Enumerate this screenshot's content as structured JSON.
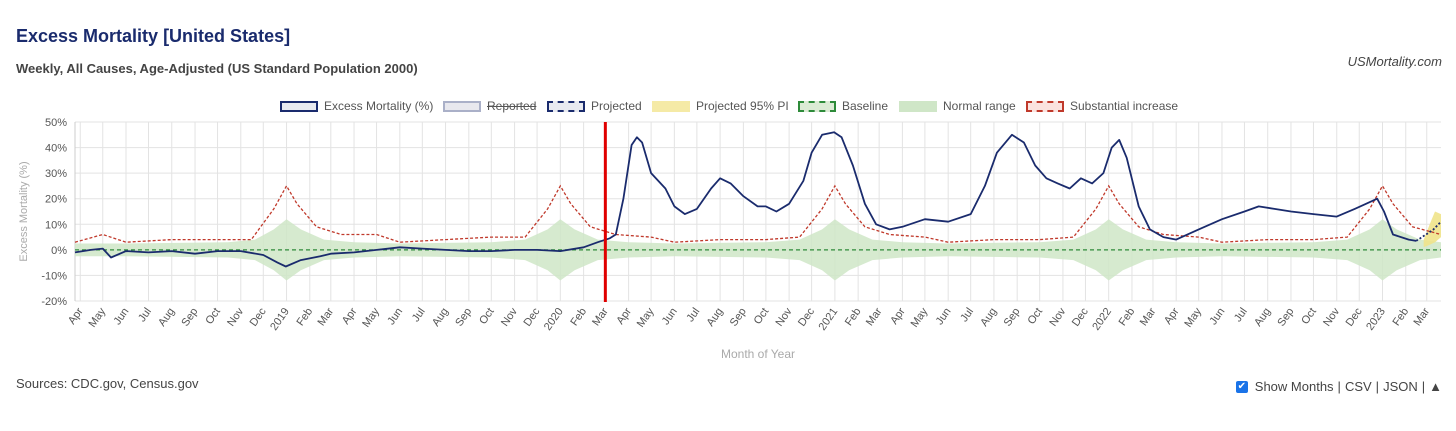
{
  "header": {
    "title": "Excess Mortality [United States]",
    "subtitle": "Weekly, All Causes, Age-Adjusted (US Standard Population 2000)",
    "brand": "USMortality.com"
  },
  "legend": [
    {
      "label": "Excess Mortality (%)",
      "struck": false,
      "fill": "#e8eaf0",
      "border": "#1a2b6d",
      "dashed": false
    },
    {
      "label": "Reported",
      "struck": true,
      "fill": "#e8e8ee",
      "border": "#aab0c8",
      "dashed": false
    },
    {
      "label": "Projected",
      "struck": false,
      "fill": "#e8eaf0",
      "border": "#1a2b6d",
      "dashed": true
    },
    {
      "label": "Projected 95% PI",
      "struck": false,
      "fill": "#f5eaa6",
      "border": "#f5eaa6",
      "dashed": false
    },
    {
      "label": "Baseline",
      "struck": false,
      "fill": "#dcebd5",
      "border": "#2e8b3a",
      "dashed": true
    },
    {
      "label": "Normal range",
      "struck": false,
      "fill": "#cfe6c7",
      "border": "#cfe6c7",
      "dashed": false
    },
    {
      "label": "Substantial increase",
      "struck": false,
      "fill": "#fbe3df",
      "border": "#c0392b",
      "dashed": true
    }
  ],
  "chart_data": {
    "type": "line",
    "ylabel": "Excess Mortality (%)",
    "xlabel": "Month of Year",
    "ylim": [
      -20,
      50
    ],
    "yticks": [
      50,
      40,
      30,
      20,
      10,
      0,
      -10,
      -20
    ],
    "xlim": [
      "2018-03-25",
      "2023-03-20"
    ],
    "grid": true,
    "marker_date": "2020-03-01",
    "colors": {
      "excess": "#1a2b6d",
      "projected": "#1a2b6d",
      "baseline": "#2e8b3a",
      "normal": "#cfe6c7",
      "substantial": "#c0392b",
      "marker": "#e00000",
      "pi": "#f0e38a"
    },
    "x_ticks": [
      [
        "2018-04-01",
        "Apr"
      ],
      [
        "2018-05-01",
        "May"
      ],
      [
        "2018-06-01",
        "Jun"
      ],
      [
        "2018-07-01",
        "Jul"
      ],
      [
        "2018-08-01",
        "Aug"
      ],
      [
        "2018-09-01",
        "Sep"
      ],
      [
        "2018-10-01",
        "Oct"
      ],
      [
        "2018-11-01",
        "Nov"
      ],
      [
        "2018-12-01",
        "Dec"
      ],
      [
        "2019-01-01",
        "2019"
      ],
      [
        "2019-02-01",
        "Feb"
      ],
      [
        "2019-03-01",
        "Mar"
      ],
      [
        "2019-04-01",
        "Apr"
      ],
      [
        "2019-05-01",
        "May"
      ],
      [
        "2019-06-01",
        "Jun"
      ],
      [
        "2019-07-01",
        "Jul"
      ],
      [
        "2019-08-01",
        "Aug"
      ],
      [
        "2019-09-01",
        "Sep"
      ],
      [
        "2019-10-01",
        "Oct"
      ],
      [
        "2019-11-01",
        "Nov"
      ],
      [
        "2019-12-01",
        "Dec"
      ],
      [
        "2020-01-01",
        "2020"
      ],
      [
        "2020-02-01",
        "Feb"
      ],
      [
        "2020-03-01",
        "Mar"
      ],
      [
        "2020-04-01",
        "Apr"
      ],
      [
        "2020-05-01",
        "May"
      ],
      [
        "2020-06-01",
        "Jun"
      ],
      [
        "2020-07-01",
        "Jul"
      ],
      [
        "2020-08-01",
        "Aug"
      ],
      [
        "2020-09-01",
        "Sep"
      ],
      [
        "2020-10-01",
        "Oct"
      ],
      [
        "2020-11-01",
        "Nov"
      ],
      [
        "2020-12-01",
        "Dec"
      ],
      [
        "2021-01-01",
        "2021"
      ],
      [
        "2021-02-01",
        "Feb"
      ],
      [
        "2021-03-01",
        "Mar"
      ],
      [
        "2021-04-01",
        "Apr"
      ],
      [
        "2021-05-01",
        "May"
      ],
      [
        "2021-06-01",
        "Jun"
      ],
      [
        "2021-07-01",
        "Jul"
      ],
      [
        "2021-08-01",
        "Aug"
      ],
      [
        "2021-09-01",
        "Sep"
      ],
      [
        "2021-10-01",
        "Oct"
      ],
      [
        "2021-11-01",
        "Nov"
      ],
      [
        "2021-12-01",
        "Dec"
      ],
      [
        "2022-01-01",
        "2022"
      ],
      [
        "2022-02-01",
        "Feb"
      ],
      [
        "2022-03-01",
        "Mar"
      ],
      [
        "2022-04-01",
        "Apr"
      ],
      [
        "2022-05-01",
        "May"
      ],
      [
        "2022-06-01",
        "Jun"
      ],
      [
        "2022-07-01",
        "Jul"
      ],
      [
        "2022-08-01",
        "Aug"
      ],
      [
        "2022-09-01",
        "Sep"
      ],
      [
        "2022-10-01",
        "Oct"
      ],
      [
        "2022-11-01",
        "Nov"
      ],
      [
        "2022-12-01",
        "Dec"
      ],
      [
        "2023-01-01",
        "2023"
      ],
      [
        "2023-02-01",
        "Feb"
      ],
      [
        "2023-03-01",
        "Mar"
      ]
    ],
    "excess": [
      [
        "2018-03-25",
        -1
      ],
      [
        "2018-04-15",
        0
      ],
      [
        "2018-05-01",
        0.5
      ],
      [
        "2018-05-12",
        -3
      ],
      [
        "2018-06-01",
        -0.5
      ],
      [
        "2018-07-01",
        -1
      ],
      [
        "2018-08-01",
        -0.5
      ],
      [
        "2018-09-01",
        -1.5
      ],
      [
        "2018-10-01",
        -0.5
      ],
      [
        "2018-11-01",
        -0.5
      ],
      [
        "2018-12-01",
        -2
      ],
      [
        "2018-12-20",
        -5
      ],
      [
        "2018-12-31",
        -6.5
      ],
      [
        "2019-01-20",
        -4
      ],
      [
        "2019-02-15",
        -2.5
      ],
      [
        "2019-03-01",
        -1.5
      ],
      [
        "2019-04-01",
        -1
      ],
      [
        "2019-05-01",
        0
      ],
      [
        "2019-06-01",
        1
      ],
      [
        "2019-07-01",
        0.5
      ],
      [
        "2019-08-01",
        0
      ],
      [
        "2019-09-01",
        -0.5
      ],
      [
        "2019-10-01",
        -0.5
      ],
      [
        "2019-11-01",
        0
      ],
      [
        "2019-12-01",
        0
      ],
      [
        "2020-01-01",
        -0.5
      ],
      [
        "2020-02-01",
        1
      ],
      [
        "2020-02-20",
        3
      ],
      [
        "2020-03-07",
        4.5
      ],
      [
        "2020-03-15",
        6
      ],
      [
        "2020-03-25",
        20
      ],
      [
        "2020-04-05",
        41
      ],
      [
        "2020-04-12",
        44
      ],
      [
        "2020-04-19",
        42
      ],
      [
        "2020-05-01",
        30
      ],
      [
        "2020-05-20",
        24
      ],
      [
        "2020-06-01",
        17
      ],
      [
        "2020-06-15",
        14
      ],
      [
        "2020-07-01",
        16
      ],
      [
        "2020-07-20",
        24
      ],
      [
        "2020-08-01",
        28
      ],
      [
        "2020-08-15",
        26
      ],
      [
        "2020-09-01",
        21
      ],
      [
        "2020-09-20",
        17
      ],
      [
        "2020-10-01",
        17
      ],
      [
        "2020-10-15",
        15
      ],
      [
        "2020-11-01",
        18
      ],
      [
        "2020-11-20",
        27
      ],
      [
        "2020-12-01",
        38
      ],
      [
        "2020-12-15",
        45
      ],
      [
        "2020-12-31",
        46
      ],
      [
        "2021-01-10",
        44
      ],
      [
        "2021-01-25",
        33
      ],
      [
        "2021-02-10",
        18
      ],
      [
        "2021-02-25",
        10
      ],
      [
        "2021-03-15",
        8
      ],
      [
        "2021-04-01",
        9
      ],
      [
        "2021-05-01",
        12
      ],
      [
        "2021-06-01",
        11
      ],
      [
        "2021-07-01",
        14
      ],
      [
        "2021-07-20",
        25
      ],
      [
        "2021-08-05",
        38
      ],
      [
        "2021-08-25",
        45
      ],
      [
        "2021-09-10",
        42
      ],
      [
        "2021-09-25",
        33
      ],
      [
        "2021-10-10",
        28
      ],
      [
        "2021-10-25",
        26
      ],
      [
        "2021-11-10",
        24
      ],
      [
        "2021-11-25",
        28
      ],
      [
        "2021-12-10",
        26
      ],
      [
        "2021-12-25",
        30
      ],
      [
        "2022-01-05",
        40
      ],
      [
        "2022-01-15",
        43
      ],
      [
        "2022-01-25",
        36
      ],
      [
        "2022-02-10",
        17
      ],
      [
        "2022-02-25",
        8
      ],
      [
        "2022-03-15",
        5
      ],
      [
        "2022-04-01",
        4
      ],
      [
        "2022-05-01",
        8
      ],
      [
        "2022-06-01",
        12
      ],
      [
        "2022-07-01",
        15
      ],
      [
        "2022-07-20",
        17
      ],
      [
        "2022-08-10",
        16
      ],
      [
        "2022-09-01",
        15
      ],
      [
        "2022-10-01",
        14
      ],
      [
        "2022-11-01",
        13
      ],
      [
        "2022-11-25",
        16
      ],
      [
        "2022-12-10",
        18
      ],
      [
        "2022-12-25",
        20
      ],
      [
        "2023-01-03",
        15
      ],
      [
        "2023-01-15",
        6
      ],
      [
        "2023-02-05",
        4
      ],
      [
        "2023-02-15",
        3.5
      ]
    ],
    "projected": [
      [
        "2023-02-15",
        3.5
      ],
      [
        "2023-02-28",
        6
      ],
      [
        "2023-03-10",
        8
      ],
      [
        "2023-03-20",
        11
      ]
    ],
    "pi": [
      [
        "2023-02-25",
        1,
        4
      ],
      [
        "2023-03-05",
        2,
        10
      ],
      [
        "2023-03-12",
        3,
        15
      ],
      [
        "2023-03-20",
        5,
        14
      ]
    ],
    "normal_range": [
      [
        "2018-03-25",
        -2.5,
        2.5
      ],
      [
        "2018-06-01",
        -2.5,
        2.5
      ],
      [
        "2018-10-15",
        -3,
        3
      ],
      [
        "2018-11-20",
        -4,
        4
      ],
      [
        "2018-12-15",
        -8,
        8
      ],
      [
        "2019-01-01",
        -12,
        12
      ],
      [
        "2019-01-20",
        -8,
        8
      ],
      [
        "2019-02-20",
        -4,
        4
      ],
      [
        "2019-04-01",
        -3,
        3
      ],
      [
        "2019-06-01",
        -2.5,
        2.5
      ],
      [
        "2019-10-01",
        -3,
        3
      ],
      [
        "2019-11-15",
        -4,
        4
      ],
      [
        "2019-12-15",
        -8,
        8
      ],
      [
        "2020-01-01",
        -12,
        12
      ],
      [
        "2020-01-20",
        -8,
        8
      ],
      [
        "2020-02-20",
        -4,
        4
      ],
      [
        "2020-04-01",
        -3,
        3
      ],
      [
        "2020-06-01",
        -2.5,
        2.5
      ],
      [
        "2020-10-01",
        -3,
        3
      ],
      [
        "2020-11-15",
        -4,
        4
      ],
      [
        "2020-12-15",
        -8,
        8
      ],
      [
        "2021-01-01",
        -12,
        12
      ],
      [
        "2021-01-20",
        -8,
        8
      ],
      [
        "2021-02-20",
        -4,
        4
      ],
      [
        "2021-04-01",
        -3,
        3
      ],
      [
        "2021-06-01",
        -2.5,
        2.5
      ],
      [
        "2021-10-01",
        -3,
        3
      ],
      [
        "2021-11-15",
        -4,
        4
      ],
      [
        "2021-12-15",
        -8,
        8
      ],
      [
        "2022-01-01",
        -12,
        12
      ],
      [
        "2022-01-20",
        -8,
        8
      ],
      [
        "2022-02-20",
        -4,
        4
      ],
      [
        "2022-04-01",
        -3,
        3
      ],
      [
        "2022-06-01",
        -2.5,
        2.5
      ],
      [
        "2022-10-01",
        -3,
        3
      ],
      [
        "2022-11-15",
        -4,
        4
      ],
      [
        "2022-12-15",
        -8,
        8
      ],
      [
        "2023-01-01",
        -12,
        12
      ],
      [
        "2023-01-20",
        -8,
        8
      ],
      [
        "2023-02-20",
        -4,
        4
      ],
      [
        "2023-03-20",
        -3,
        3
      ]
    ],
    "substantial": [
      [
        "2018-03-25",
        3
      ],
      [
        "2018-05-01",
        6
      ],
      [
        "2018-06-01",
        3
      ],
      [
        "2018-08-01",
        4
      ],
      [
        "2018-10-01",
        4
      ],
      [
        "2018-11-15",
        4
      ],
      [
        "2018-12-15",
        16
      ],
      [
        "2019-01-01",
        25
      ],
      [
        "2019-01-15",
        18
      ],
      [
        "2019-02-10",
        9
      ],
      [
        "2019-03-15",
        6
      ],
      [
        "2019-05-01",
        6
      ],
      [
        "2019-06-01",
        3
      ],
      [
        "2019-08-01",
        4
      ],
      [
        "2019-10-01",
        5
      ],
      [
        "2019-11-15",
        5
      ],
      [
        "2019-12-15",
        16
      ],
      [
        "2020-01-01",
        25
      ],
      [
        "2020-01-15",
        18
      ],
      [
        "2020-02-10",
        9
      ],
      [
        "2020-03-15",
        6
      ],
      [
        "2020-05-01",
        5
      ],
      [
        "2020-06-01",
        3
      ],
      [
        "2020-08-01",
        4
      ],
      [
        "2020-10-01",
        4
      ],
      [
        "2020-11-15",
        5
      ],
      [
        "2020-12-15",
        16
      ],
      [
        "2021-01-01",
        25
      ],
      [
        "2021-01-15",
        18
      ],
      [
        "2021-02-10",
        9
      ],
      [
        "2021-03-15",
        6
      ],
      [
        "2021-05-01",
        5
      ],
      [
        "2021-06-01",
        3
      ],
      [
        "2021-08-01",
        4
      ],
      [
        "2021-10-01",
        4
      ],
      [
        "2021-11-15",
        5
      ],
      [
        "2021-12-15",
        16
      ],
      [
        "2022-01-01",
        25
      ],
      [
        "2022-01-15",
        18
      ],
      [
        "2022-02-10",
        9
      ],
      [
        "2022-03-15",
        6
      ],
      [
        "2022-05-01",
        5
      ],
      [
        "2022-06-01",
        3
      ],
      [
        "2022-08-01",
        4
      ],
      [
        "2022-10-01",
        4
      ],
      [
        "2022-11-15",
        5
      ],
      [
        "2022-12-15",
        16
      ],
      [
        "2023-01-01",
        25
      ],
      [
        "2023-01-15",
        18
      ],
      [
        "2023-02-10",
        9
      ],
      [
        "2023-03-20",
        6
      ]
    ]
  },
  "footer": {
    "sources": "Sources: CDC.gov, Census.gov",
    "show_months": "Show Months",
    "csv": "CSV",
    "json": "JSON",
    "sep": "|",
    "top": "▲"
  }
}
